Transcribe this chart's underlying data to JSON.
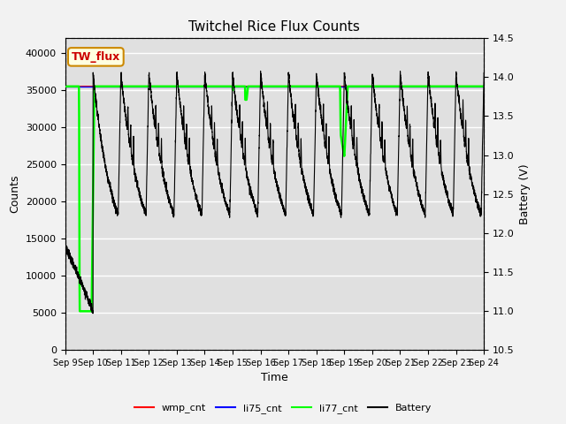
{
  "title": "Twitchel Rice Flux Counts",
  "xlabel": "Time",
  "ylabel_left": "Counts",
  "ylabel_right": "Battery (V)",
  "ylim_left": [
    0,
    42000
  ],
  "ylim_right": [
    10.5,
    14.5
  ],
  "bg_color": "#e0e0e0",
  "fig_color": "#f2f2f2",
  "annotation_box_text": "TW_flux",
  "annotation_box_fc": "lightyellow",
  "annotation_box_ec": "#cc8800",
  "annotation_text_color": "#cc0000",
  "xtick_labels": [
    "Sep 9",
    "Sep 10",
    "Sep 11",
    "Sep 12",
    "Sep 13",
    "Sep 14",
    "Sep 15",
    "Sep 16",
    "Sep 17",
    "Sep 18",
    "Sep 19",
    "Sep 20",
    "Sep 21",
    "Sep 22",
    "Sep 23",
    "Sep 24"
  ],
  "yticks_left": [
    0,
    5000,
    10000,
    15000,
    20000,
    25000,
    30000,
    35000,
    40000
  ],
  "yticks_right": [
    10.5,
    11.0,
    11.5,
    12.0,
    12.5,
    13.0,
    13.5,
    14.0,
    14.5
  ],
  "legend_labels": [
    "wmp_cnt",
    "li75_cnt",
    "li77_cnt",
    "Battery"
  ],
  "legend_colors": [
    "red",
    "blue",
    "lime",
    "black"
  ],
  "li77_level": 35500,
  "battery_scale_min": 10.5,
  "battery_scale_max": 14.5,
  "counts_scale_min": 0,
  "counts_scale_max": 42000,
  "t_total": 15.0
}
